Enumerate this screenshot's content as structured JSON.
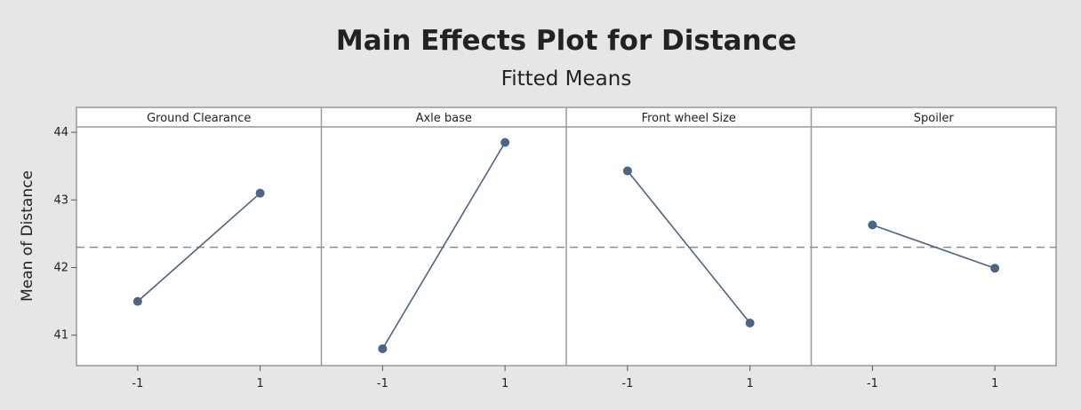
{
  "chart_data": {
    "type": "line",
    "title": "Main Effects Plot for Distance",
    "subtitle": "Fitted Means",
    "ylabel": "Mean of Distance",
    "xlabel": "",
    "ylim": [
      40.55,
      44.08
    ],
    "y_ticks": [
      41,
      42,
      43,
      44
    ],
    "x_categories": [
      "-1",
      "1"
    ],
    "reference_line": 42.3,
    "grid": false,
    "colors": {
      "line": "#4d6485",
      "marker": "#4d6485",
      "reference": "#8c8c8c",
      "panel_bg": "#ffffff",
      "page_bg": "#e6e6e6"
    },
    "panels": [
      {
        "name": "Ground Clearance",
        "values": [
          41.5,
          43.1
        ]
      },
      {
        "name": "Axle base",
        "values": [
          40.8,
          43.85
        ]
      },
      {
        "name": "Front wheel Size",
        "values": [
          43.43,
          41.18
        ]
      },
      {
        "name": "Spoiler",
        "values": [
          42.63,
          41.99
        ]
      }
    ]
  }
}
